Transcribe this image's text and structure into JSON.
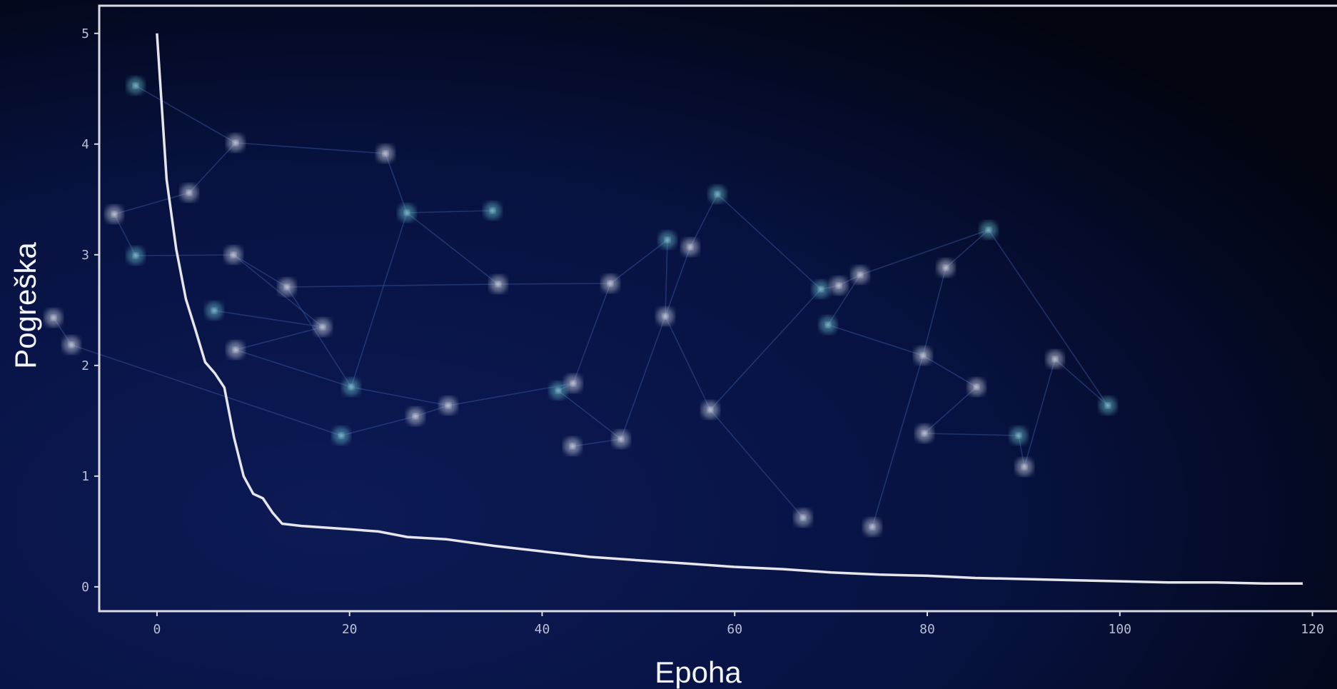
{
  "chart_data": {
    "type": "line",
    "title": "",
    "xlabel": "Epoha",
    "ylabel": "Pogreška",
    "xlim": [
      -6,
      123
    ],
    "ylim": [
      -0.22,
      5.25
    ],
    "xticks": [
      "0",
      "20",
      "40",
      "60",
      "80",
      "100",
      "120"
    ],
    "yticks": [
      "0",
      "1",
      "2",
      "3",
      "4",
      "5"
    ],
    "grid": false,
    "legend": "none",
    "colors": {
      "line": "#e6e6ea",
      "frame": "#d9dbe3",
      "background": "#040a24"
    },
    "series": [
      {
        "x": [
          0,
          1,
          2,
          3,
          4,
          5,
          6,
          7,
          8,
          9,
          10,
          11,
          12,
          13,
          15,
          20,
          23,
          26,
          30,
          35,
          40,
          45,
          50,
          55,
          60,
          65,
          70,
          75,
          80,
          85,
          90,
          95,
          100,
          105,
          110,
          115,
          119
        ],
        "y": [
          5.0,
          3.68,
          3.05,
          2.6,
          2.32,
          2.03,
          1.93,
          1.8,
          1.35,
          1.0,
          0.84,
          0.8,
          0.67,
          0.57,
          0.55,
          0.52,
          0.5,
          0.45,
          0.43,
          0.37,
          0.32,
          0.27,
          0.24,
          0.21,
          0.18,
          0.16,
          0.13,
          0.11,
          0.1,
          0.08,
          0.07,
          0.06,
          0.05,
          0.04,
          0.04,
          0.03,
          0.03
        ]
      }
    ]
  }
}
